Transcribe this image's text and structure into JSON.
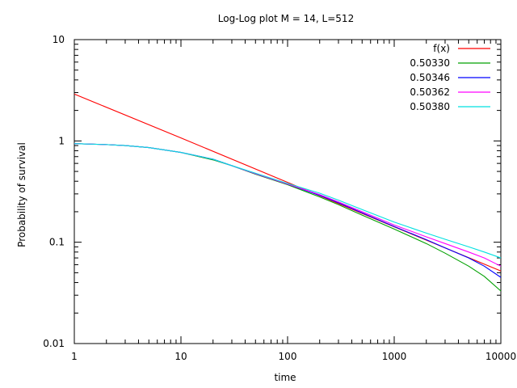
{
  "chart_data": {
    "type": "line",
    "title": "Log-Log plot M = 14, L=512",
    "xlabel": "time",
    "ylabel": "Probability of survival",
    "xscale": "log",
    "yscale": "log",
    "xlim": [
      1,
      10000
    ],
    "ylim": [
      0.01,
      10
    ],
    "x_ticks": [
      1,
      10,
      100,
      1000,
      10000
    ],
    "x_tick_labels": [
      "1",
      "10",
      "100",
      "1000",
      "10000"
    ],
    "y_ticks": [
      0.01,
      0.1,
      1,
      10
    ],
    "y_tick_labels": [
      "0.01",
      "0.1",
      "1",
      "10"
    ],
    "grid": false,
    "legend_position": "top-right",
    "series": [
      {
        "name": "f(x)",
        "color": "#ff0000",
        "points": [
          [
            1,
            2.9
          ],
          [
            10,
            1.07
          ],
          [
            100,
            0.39
          ],
          [
            1000,
            0.142
          ],
          [
            10000,
            0.052
          ]
        ]
      },
      {
        "name": "0.50330",
        "color": "#00a000",
        "points": [
          [
            1,
            0.94
          ],
          [
            2,
            0.92
          ],
          [
            3,
            0.9
          ],
          [
            5,
            0.86
          ],
          [
            10,
            0.77
          ],
          [
            20,
            0.65
          ],
          [
            30,
            0.57
          ],
          [
            50,
            0.47
          ],
          [
            100,
            0.37
          ],
          [
            200,
            0.28
          ],
          [
            300,
            0.235
          ],
          [
            500,
            0.185
          ],
          [
            1000,
            0.135
          ],
          [
            2000,
            0.097
          ],
          [
            3000,
            0.078
          ],
          [
            5000,
            0.058
          ],
          [
            7000,
            0.046
          ],
          [
            10000,
            0.033
          ]
        ]
      },
      {
        "name": "0.50346",
        "color": "#0000ff",
        "points": [
          [
            1,
            0.94
          ],
          [
            2,
            0.92
          ],
          [
            3,
            0.9
          ],
          [
            5,
            0.86
          ],
          [
            10,
            0.77
          ],
          [
            20,
            0.66
          ],
          [
            30,
            0.57
          ],
          [
            50,
            0.475
          ],
          [
            100,
            0.375
          ],
          [
            200,
            0.29
          ],
          [
            300,
            0.245
          ],
          [
            500,
            0.195
          ],
          [
            1000,
            0.143
          ],
          [
            2000,
            0.106
          ],
          [
            3000,
            0.088
          ],
          [
            5000,
            0.07
          ],
          [
            7000,
            0.058
          ],
          [
            10000,
            0.045
          ]
        ]
      },
      {
        "name": "0.50362",
        "color": "#ff00ff",
        "points": [
          [
            1,
            0.94
          ],
          [
            2,
            0.92
          ],
          [
            3,
            0.9
          ],
          [
            5,
            0.86
          ],
          [
            10,
            0.77
          ],
          [
            20,
            0.66
          ],
          [
            30,
            0.57
          ],
          [
            50,
            0.475
          ],
          [
            100,
            0.375
          ],
          [
            200,
            0.295
          ],
          [
            300,
            0.25
          ],
          [
            500,
            0.2
          ],
          [
            1000,
            0.148
          ],
          [
            2000,
            0.113
          ],
          [
            3000,
            0.097
          ],
          [
            5000,
            0.08
          ],
          [
            7000,
            0.07
          ],
          [
            10000,
            0.058
          ]
        ]
      },
      {
        "name": "0.50380",
        "color": "#00e0e0",
        "points": [
          [
            1,
            0.94
          ],
          [
            2,
            0.92
          ],
          [
            3,
            0.9
          ],
          [
            5,
            0.86
          ],
          [
            10,
            0.77
          ],
          [
            20,
            0.66
          ],
          [
            30,
            0.57
          ],
          [
            50,
            0.48
          ],
          [
            100,
            0.38
          ],
          [
            200,
            0.305
          ],
          [
            300,
            0.26
          ],
          [
            500,
            0.21
          ],
          [
            1000,
            0.158
          ],
          [
            2000,
            0.123
          ],
          [
            3000,
            0.107
          ],
          [
            5000,
            0.09
          ],
          [
            7000,
            0.08
          ],
          [
            10000,
            0.07
          ]
        ]
      }
    ]
  }
}
